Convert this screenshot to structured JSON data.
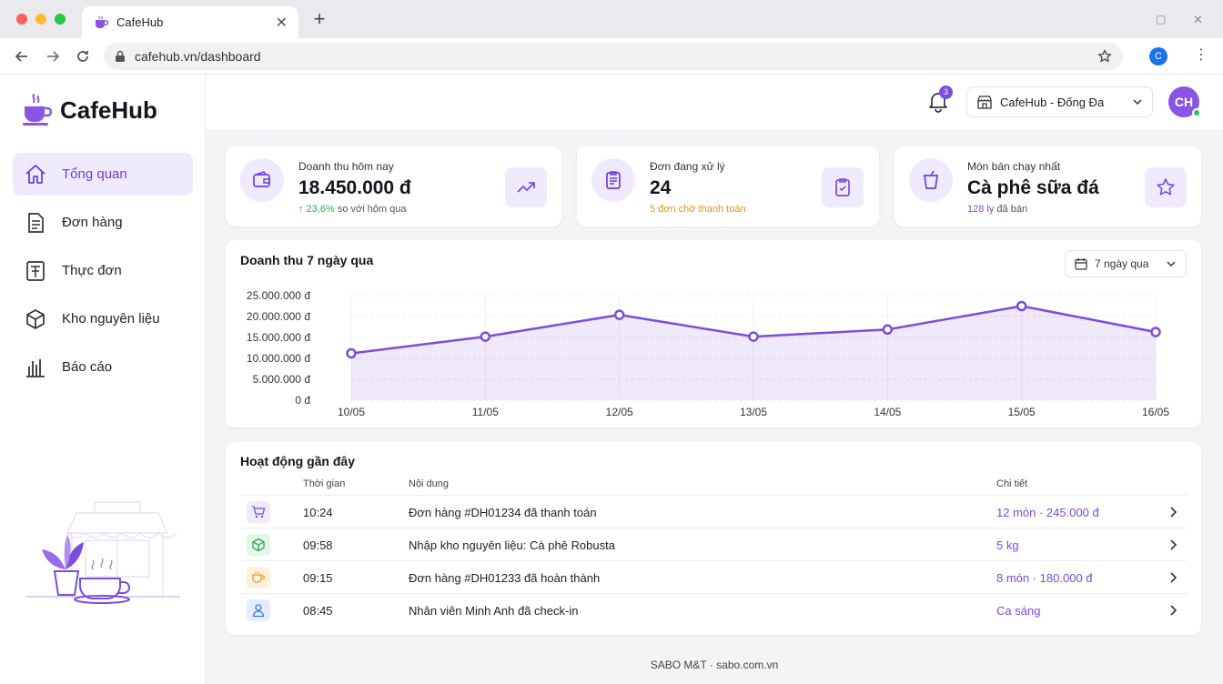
{
  "browser": {
    "tab_title": "CafeHub",
    "url": "cafehub.vn/dashboard",
    "profile_initial": "C"
  },
  "sidebar": {
    "brand": "CafeHub",
    "items": [
      {
        "label": "Tổng quan",
        "icon": "home-icon",
        "active": true
      },
      {
        "label": "Đơn hàng",
        "icon": "document-icon",
        "active": false
      },
      {
        "label": "Thực đơn",
        "icon": "menu-icon",
        "active": false
      },
      {
        "label": "Kho nguyên liệu",
        "icon": "box-icon",
        "active": false
      },
      {
        "label": "Báo cáo",
        "icon": "bar-chart-icon",
        "active": false
      }
    ]
  },
  "header": {
    "notification_count": "3",
    "store": "CafeHub - Đống Đa",
    "avatar_initials": "CH"
  },
  "stats": {
    "revenue": {
      "label": "Doanh thu hôm nay",
      "value": "18.450.000 đ",
      "change": "↑ 23,6%",
      "change_suffix": "so với hôm qua"
    },
    "orders": {
      "label": "Đơn đang xử lý",
      "value": "24",
      "sub": "5 đơn chờ thanh toán"
    },
    "best": {
      "label": "Món bán chạy nhất",
      "value": "Cà phê sữa đá",
      "sub_count": "128 ly",
      "sub_suffix": "đã bán"
    }
  },
  "revenue_chart": {
    "title": "Doanh thu 7 ngày qua",
    "range": "7 ngày qua"
  },
  "chart_data": {
    "type": "area",
    "title": "Doanh thu 7 ngày qua",
    "x": [
      "10/05",
      "11/05",
      "12/05",
      "13/05",
      "14/05",
      "15/05",
      "16/05"
    ],
    "series": [
      {
        "values": [
          11200000,
          15200000,
          20400000,
          15200000,
          16900000,
          22500000,
          16300000
        ]
      }
    ],
    "yticks": [
      "25.000.000 đ",
      "20.000.000 đ",
      "15.000.000 đ",
      "10.000.000 đ",
      "5.000.000 đ",
      "0 đ"
    ],
    "ylim": [
      0,
      25000000
    ],
    "grid": true,
    "color": "#7c4ddd"
  },
  "activity": {
    "title": "Hoạt động gần đây",
    "columns": {
      "time": "Thời gian",
      "content": "Nội dung",
      "detail": "Chi tiết"
    },
    "rows": [
      {
        "icon": "cart-icon",
        "time": "10:24",
        "content": "Đơn hàng #DH01234 đã thanh toán",
        "detail": "12 món  ·  245.000 đ"
      },
      {
        "icon": "package-icon",
        "time": "09:58",
        "content": "Nhập kho nguyên liệu: Cà phê Robusta",
        "detail": "5 kg"
      },
      {
        "icon": "coffee-cup-icon",
        "time": "09:15",
        "content": "Đơn hàng #DH01233 đã hoàn thành",
        "detail": "8 món  ·  180.000 đ"
      },
      {
        "icon": "user-icon",
        "time": "08:45",
        "content": "Nhân viên Minh Anh đã check-in",
        "detail": "Ca sáng"
      }
    ]
  },
  "footer": "SABO M&T · sabo.com.vn",
  "colors": {
    "accent": "#7c4ddd",
    "accent_light": "#efeafd",
    "success": "#2fa85a",
    "warning": "#d89a10"
  }
}
